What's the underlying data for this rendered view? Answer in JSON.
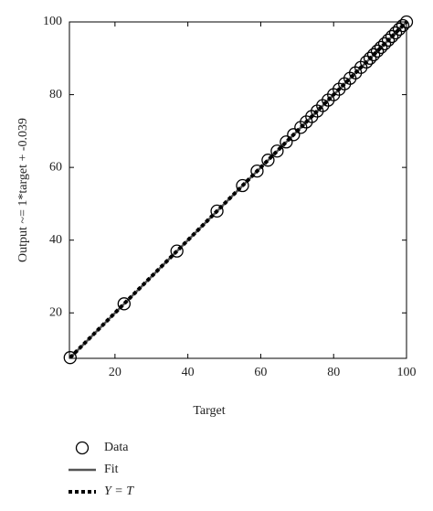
{
  "chart_data": {
    "type": "scatter",
    "xlabel": "Target",
    "ylabel": "Output ~= 1*target + -0.039",
    "xlim": [
      7.5,
      100
    ],
    "ylim": [
      7.5,
      100
    ],
    "xticks": [
      20,
      40,
      60,
      80,
      100
    ],
    "yticks": [
      20,
      40,
      60,
      80,
      100
    ],
    "series": [
      {
        "name": "Data",
        "color": "#000000",
        "style": "marker",
        "x": [
          7.7,
          22.5,
          37,
          48,
          55,
          59,
          62,
          64.5,
          67,
          69,
          71,
          72.5,
          74,
          75.5,
          77,
          78.5,
          80,
          81.5,
          83,
          84.5,
          86,
          87.5,
          89,
          90,
          91,
          92,
          93,
          94,
          95,
          96,
          97,
          98,
          99,
          100
        ],
        "values": [
          7.7,
          22.5,
          37,
          48,
          55,
          59,
          62,
          64.5,
          67,
          69,
          71,
          72.5,
          74,
          75.5,
          77,
          78.5,
          80,
          81.5,
          83,
          84.5,
          86,
          87.5,
          89,
          90,
          91,
          92,
          93,
          94,
          95,
          96,
          97,
          98,
          99,
          100
        ]
      },
      {
        "name": "Fit",
        "color": "#555555",
        "style": "solid",
        "x": [
          7.7,
          100
        ],
        "values": [
          7.661,
          99.961
        ]
      },
      {
        "name": "Y = T",
        "color": "#000000",
        "style": "dotted",
        "x": [
          7.7,
          100
        ],
        "values": [
          7.7,
          100
        ]
      }
    ]
  }
}
